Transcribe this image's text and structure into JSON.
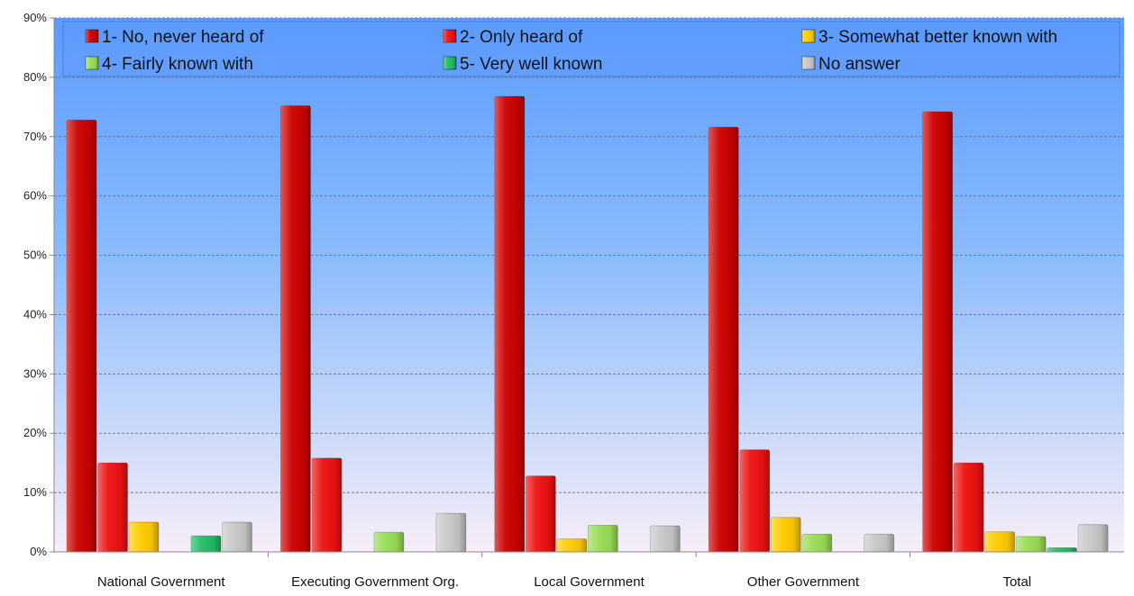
{
  "chart_data": {
    "type": "bar",
    "title": "",
    "xlabel": "",
    "ylabel": "",
    "ylim": [
      0,
      90
    ],
    "y_tick_values": [
      0,
      10,
      20,
      30,
      40,
      50,
      60,
      70,
      80,
      90
    ],
    "y_tick_labels": [
      "0%",
      "10%",
      "20%",
      "30%",
      "40%",
      "50%",
      "60%",
      "70%",
      "80%",
      "90%"
    ],
    "grid": true,
    "legend_position": "top",
    "categories": [
      "National Government",
      "Executing Government Org.",
      "Local Government",
      "Other Government",
      "Total"
    ],
    "series": [
      {
        "name": "1- No, never heard of",
        "color": "#cc0000",
        "values": [
          72.8,
          75.2,
          76.8,
          71.6,
          74.2
        ]
      },
      {
        "name": "2- Only heard of",
        "color": "#ee1111",
        "values": [
          15.0,
          15.8,
          12.8,
          17.2,
          15.0
        ]
      },
      {
        "name": "3- Somewhat better known with",
        "color": "#ffcc00",
        "values": [
          5.0,
          0,
          2.2,
          5.8,
          3.4
        ]
      },
      {
        "name": "4- Fairly known with",
        "color": "#99dd55",
        "values": [
          0,
          3.3,
          4.5,
          3.0,
          2.6
        ]
      },
      {
        "name": "5- Very well known",
        "color": "#22bb66",
        "values": [
          2.7,
          0,
          0,
          0,
          0.7
        ]
      },
      {
        "name": "No answer",
        "color": "#c8c8c8",
        "values": [
          5.0,
          6.5,
          4.4,
          3.0,
          4.6
        ]
      }
    ]
  }
}
